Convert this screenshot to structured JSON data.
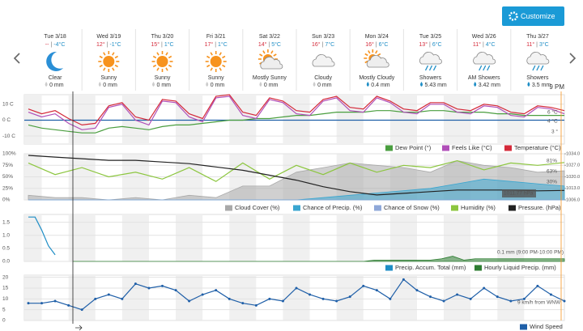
{
  "header": {
    "button": "Customize",
    "hover_time": "9 PM",
    "temp_separator": "|"
  },
  "days": [
    {
      "date": "Tue 3/18",
      "high": "--",
      "low": "-4°C",
      "condition": "Clear",
      "precip": "0 mm",
      "icon": "moon"
    },
    {
      "date": "Wed 3/19",
      "high": "12°",
      "low": "-1°C",
      "condition": "Sunny",
      "precip": "0 mm",
      "icon": "sun"
    },
    {
      "date": "Thu 3/20",
      "high": "15°",
      "low": "1°C",
      "condition": "Sunny",
      "precip": "0 mm",
      "icon": "sun"
    },
    {
      "date": "Fri 3/21",
      "high": "17°",
      "low": "1°C",
      "condition": "Sunny",
      "precip": "0 mm",
      "icon": "sun"
    },
    {
      "date": "Sat 3/22",
      "high": "14°",
      "low": "5°C",
      "condition": "Mostly Sunny",
      "precip": "0 mm",
      "icon": "suncloud"
    },
    {
      "date": "Sun 3/23",
      "high": "16°",
      "low": "7°C",
      "condition": "Cloudy",
      "precip": "0 mm",
      "icon": "cloud"
    },
    {
      "date": "Mon 3/24",
      "high": "16°",
      "low": "6°C",
      "condition": "Mostly Cloudy",
      "precip": "0.4 mm",
      "icon": "cloudsun"
    },
    {
      "date": "Tue 3/25",
      "high": "13°",
      "low": "6°C",
      "condition": "Showers",
      "precip": "5.43 mm",
      "icon": "rain"
    },
    {
      "date": "Wed 3/26",
      "high": "11°",
      "low": "4°C",
      "condition": "AM Showers",
      "precip": "3.42 mm",
      "icon": "rain"
    },
    {
      "date": "Thu 3/27",
      "high": "11°",
      "low": "3°C",
      "condition": "Showers",
      "precip": "3.5 mm",
      "icon": "rain"
    }
  ],
  "charts": [
    {
      "ylim": [
        -15,
        16
      ],
      "yticks": [
        {
          "value": 10,
          "label": "10 C"
        },
        {
          "value": 0,
          "label": "0 C"
        },
        {
          "value": -10,
          "label": "-10 C"
        }
      ],
      "freezing_line": 0,
      "x": [
        0,
        6,
        12,
        18,
        24,
        30,
        36,
        42,
        48,
        54,
        60,
        66,
        72,
        78,
        84,
        90,
        96,
        102,
        108,
        114,
        120,
        126,
        132,
        138,
        144,
        150,
        156,
        162,
        168,
        174,
        180,
        186,
        192,
        198,
        204,
        210,
        216,
        222,
        228,
        234,
        240
      ],
      "series": [
        {
          "name": "Dew Point (°)",
          "color": "#4a9e3f",
          "values": [
            -3,
            -5,
            -6,
            -7,
            -8,
            -8,
            -5,
            -4,
            -5,
            -6,
            -4,
            -3,
            -3,
            -2,
            -1,
            0,
            0,
            1,
            1,
            2,
            3,
            3,
            4,
            5,
            5,
            5,
            6,
            6,
            5,
            5,
            6,
            6,
            5,
            5,
            5,
            4,
            4,
            3,
            3,
            3,
            3
          ]
        },
        {
          "name": "Feels Like (°C)",
          "color": "#b04fb8",
          "values": [
            5,
            2,
            4,
            -2,
            -6,
            -5,
            8,
            10,
            0,
            -3,
            12,
            11,
            2,
            -1,
            14,
            15,
            3,
            1,
            13,
            11,
            4,
            3,
            12,
            14,
            6,
            5,
            14,
            11,
            5,
            4,
            10,
            10,
            5,
            4,
            9,
            8,
            3,
            2,
            8,
            7,
            4
          ]
        },
        {
          "name": "Temperature (°C)",
          "color": "#d42a3a",
          "values": [
            7,
            4,
            6,
            1,
            -3,
            -2,
            9,
            11,
            2,
            0,
            13,
            12,
            4,
            1,
            15,
            16,
            5,
            3,
            14,
            12,
            6,
            5,
            13,
            15,
            8,
            7,
            15,
            12,
            7,
            6,
            11,
            11,
            7,
            6,
            10,
            9,
            5,
            4,
            9,
            8,
            6
          ]
        }
      ],
      "annotations": [
        {
          "text": "6 °C",
          "color": "#d42a3a"
        },
        {
          "text": "4 °C",
          "color": "#b04fb8"
        },
        {
          "text": "3 °",
          "color": "#4a9e3f"
        }
      ]
    },
    {
      "ylim": [
        0,
        100
      ],
      "yticks": [
        {
          "value": 100,
          "label": "100%"
        },
        {
          "value": 75,
          "label": "75%"
        },
        {
          "value": 50,
          "label": "50%"
        },
        {
          "value": 25,
          "label": "25%"
        },
        {
          "value": 0,
          "label": "0%"
        }
      ],
      "y2lim": [
        1006,
        1034
      ],
      "y2ticks": [
        {
          "value": 1034,
          "label": "1034.0"
        },
        {
          "value": 1027,
          "label": "1027.0"
        },
        {
          "value": 1020,
          "label": "1020.0"
        },
        {
          "value": 1013,
          "label": "1013.0"
        },
        {
          "value": 1006,
          "label": "1006.0"
        }
      ],
      "x": [
        0,
        12,
        24,
        36,
        48,
        60,
        72,
        84,
        96,
        108,
        120,
        132,
        144,
        156,
        168,
        180,
        192,
        204,
        216,
        228,
        240
      ],
      "series": [
        {
          "name": "Cloud Cover (%)",
          "color": "#a9a9a9",
          "kind": "area",
          "values": [
            10,
            5,
            5,
            0,
            5,
            0,
            10,
            5,
            30,
            30,
            60,
            70,
            80,
            75,
            70,
            60,
            85,
            75,
            70,
            60,
            63
          ]
        },
        {
          "name": "Chance of Precip. (%)",
          "color": "#3aa6d0",
          "kind": "area",
          "values": [
            0,
            0,
            0,
            0,
            0,
            0,
            0,
            0,
            0,
            0,
            0,
            5,
            10,
            15,
            20,
            25,
            35,
            45,
            40,
            35,
            30
          ]
        },
        {
          "name": "Chance of Snow (%)",
          "color": "#8fa8d8",
          "kind": "area",
          "values": [
            0,
            0,
            0,
            0,
            0,
            0,
            0,
            0,
            0,
            0,
            0,
            0,
            0,
            0,
            0,
            0,
            0,
            0,
            0,
            0,
            0
          ]
        },
        {
          "name": "Humidity (%)",
          "color": "#8cc63f",
          "kind": "line",
          "values": [
            80,
            55,
            70,
            50,
            60,
            45,
            70,
            40,
            80,
            45,
            75,
            55,
            80,
            60,
            75,
            70,
            85,
            65,
            80,
            75,
            81
          ]
        },
        {
          "name": "Pressure. (hPa)",
          "color": "#222222",
          "kind": "line",
          "axis": "y2",
          "values": [
            1033,
            1032,
            1031,
            1030,
            1030,
            1029,
            1028,
            1026,
            1024,
            1021,
            1018,
            1014,
            1011,
            1009,
            1010,
            1011,
            1012,
            1012,
            1012,
            1011.5,
            1011.77
          ]
        }
      ],
      "annotations": [
        {
          "text": "81%",
          "color": "#6aa82a"
        },
        {
          "text": "63%",
          "color": "#888888"
        },
        {
          "text": "30%",
          "color": "#3aa6d0"
        },
        {
          "text": "1011.77 hPa",
          "color": "#ffffff"
        }
      ]
    },
    {
      "ylim": [
        0,
        1.8
      ],
      "yticks": [
        1.5,
        {
          "value": 1,
          "label": "1.0"
        },
        0.5,
        {
          "value": 0,
          "label": "0.0"
        }
      ],
      "series": [
        {
          "name": "Precip. Accum. Total (mm)",
          "color": "#1f8ec6",
          "kind": "line",
          "x": [
            0,
            3,
            6,
            9,
            12
          ],
          "values": [
            1.7,
            1.7,
            1.2,
            0.6,
            0.25
          ]
        },
        {
          "name": "Hourly Liquid Precip. (mm)",
          "color": "#2e7d32",
          "kind": "area",
          "x": [
            20,
            150,
            155,
            180,
            185,
            190,
            195,
            200,
            220,
            240
          ],
          "values": [
            0,
            0,
            0.05,
            0.05,
            0.1,
            0.2,
            0.05,
            0.1,
            0.1,
            0.1
          ]
        }
      ],
      "annotations": [
        {
          "text": "0.1 mm (9:00 PM-10:00 PM)",
          "color": "#2e7d32"
        }
      ]
    },
    {
      "ylim": [
        0,
        21
      ],
      "yticks": [
        20,
        15,
        10,
        5,
        0
      ],
      "x": [
        0,
        6,
        12,
        18,
        24,
        30,
        36,
        42,
        48,
        54,
        60,
        66,
        72,
        78,
        84,
        90,
        96,
        102,
        108,
        114,
        120,
        126,
        132,
        138,
        144,
        150,
        156,
        162,
        168,
        174,
        180,
        186,
        192,
        198,
        204,
        210,
        216,
        222,
        228,
        234,
        240
      ],
      "series": [
        {
          "name": "Wind Speed",
          "color": "#1f5fa8",
          "kind": "line",
          "values": [
            8,
            8,
            9,
            7,
            5,
            10,
            12,
            10,
            17,
            15,
            16,
            14,
            9,
            12,
            14,
            10,
            8,
            7,
            10,
            9,
            15,
            12,
            10,
            9,
            11,
            16,
            14,
            10,
            19,
            14,
            11,
            9,
            12,
            10,
            15,
            11,
            9,
            10,
            16,
            12,
            9
          ]
        }
      ],
      "annotations": [
        {
          "text": "9 km/h from WNW",
          "color": "#1f5fa8"
        }
      ]
    }
  ]
}
